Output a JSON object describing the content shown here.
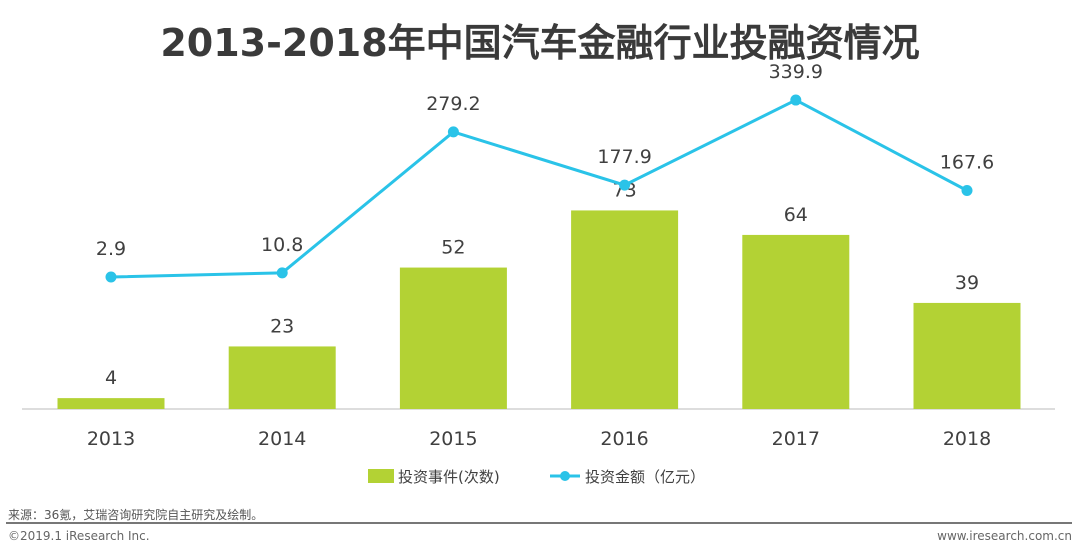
{
  "chart_data": {
    "type": "bar+line",
    "title": "2013-2018年中国汽车金融行业投融资情况",
    "categories": [
      "2013",
      "2014",
      "2015",
      "2016",
      "2017",
      "2018"
    ],
    "series": [
      {
        "name": "投资事件(次数)",
        "type": "bar",
        "color": "#b3d234",
        "values": [
          4,
          23,
          52,
          73,
          64,
          39
        ]
      },
      {
        "name": "投资金额（亿元）",
        "type": "line",
        "color": "#2ac3e8",
        "values": [
          2.9,
          10.8,
          279.2,
          177.9,
          339.9,
          167.6
        ]
      }
    ],
    "legend_position": "bottom",
    "grid": false
  },
  "footer": {
    "source": "来源：36氪，艾瑞咨询研究院自主研究及绘制。",
    "copyright": "©2019.1 iResearch Inc.",
    "url": "www.iresearch.com.cn"
  }
}
